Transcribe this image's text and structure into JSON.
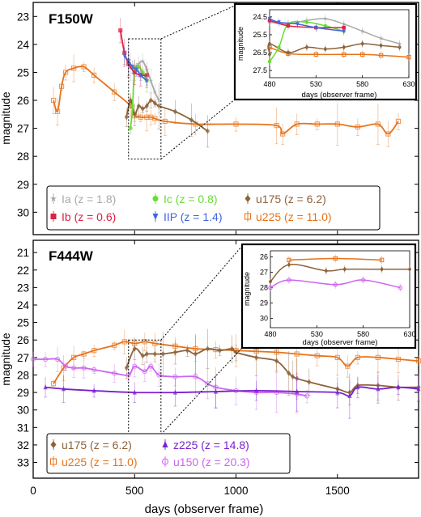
{
  "figure": {
    "xlabel": "days (observer frame)",
    "xticks": [
      "0",
      "500",
      "1000",
      "1500"
    ]
  },
  "chart_data": [
    {
      "type": "line",
      "title": "F150W",
      "ylabel": "magnitude",
      "xlim": [
        0,
        1900
      ],
      "ylim": [
        30.8,
        22.5
      ],
      "y_inverted": true,
      "yticks": [
        23,
        24,
        25,
        26,
        27,
        28,
        29,
        30
      ],
      "legend": {
        "placement": "bottom",
        "entries": [
          {
            "label": "Ia (z = 1.8)",
            "color": "#a9a9a9",
            "marker": "star"
          },
          {
            "label": "Ic (z = 0.8)",
            "color": "#66dd33",
            "marker": "circle"
          },
          {
            "label": "u175 (z = 6.2)",
            "color": "#8c6239",
            "marker": "diamond"
          },
          {
            "label": "Ib (z = 0.6)",
            "color": "#dd2244",
            "marker": "square"
          },
          {
            "label": "IIP (z = 1.4)",
            "color": "#4466dd",
            "marker": "triangle-down"
          },
          {
            "label": "u225 (z = 11.0)",
            "color": "#e8731a",
            "marker": "open-square"
          }
        ]
      },
      "zoom_box": {
        "x": [
          470,
          630
        ],
        "y": [
          23.8,
          28.1
        ]
      },
      "series": [
        {
          "name": "u225 (z = 11.0)",
          "color": "#e8731a",
          "x": [
            100,
            120,
            140,
            160,
            200,
            250,
            300,
            400,
            480,
            500,
            530,
            560,
            580,
            600,
            650,
            800,
            1000,
            1200,
            1230,
            1300,
            1400,
            1500,
            1600,
            1700,
            1750,
            1800
          ],
          "y": [
            26.0,
            26.4,
            25.5,
            25.0,
            24.85,
            24.8,
            25.1,
            25.7,
            26.2,
            26.55,
            26.6,
            26.6,
            26.6,
            26.65,
            26.75,
            26.85,
            26.85,
            26.9,
            27.2,
            26.85,
            26.85,
            26.85,
            26.95,
            26.85,
            27.2,
            26.75
          ]
        },
        {
          "name": "u175 (z = 6.2)",
          "color": "#8c6239",
          "x": [
            460,
            480,
            500,
            520,
            540,
            560,
            580,
            600,
            620,
            700,
            780,
            860
          ],
          "y": [
            26.6,
            26.0,
            26.5,
            26.2,
            26.3,
            26.2,
            26.0,
            26.1,
            26.2,
            26.4,
            26.7,
            27.1
          ]
        },
        {
          "name": "Ia (z = 1.8)",
          "color": "#a9a9a9",
          "x": [
            480,
            500,
            520,
            540,
            560,
            580,
            600,
            620
          ],
          "y": [
            24.8,
            24.9,
            24.7,
            24.6,
            24.9,
            25.3,
            25.7,
            26.0
          ]
        },
        {
          "name": "Ic (z = 0.8)",
          "color": "#66dd33",
          "x": [
            480,
            490,
            500,
            520,
            540,
            560
          ],
          "y": [
            27.0,
            26.2,
            24.9,
            24.8,
            25.0,
            25.3
          ]
        },
        {
          "name": "Ib (z = 0.6)",
          "color": "#dd2244",
          "x": [
            430,
            450,
            470,
            500,
            530,
            560
          ],
          "y": [
            23.5,
            24.3,
            24.7,
            25.0,
            25.1,
            25.1
          ]
        },
        {
          "name": "IIP (z = 1.4)",
          "color": "#4466dd",
          "x": [
            450,
            470,
            490,
            510,
            530,
            560
          ],
          "y": [
            24.4,
            24.6,
            24.8,
            24.9,
            25.1,
            25.3
          ]
        }
      ],
      "inset": {
        "xlabel": "days (observer frame)",
        "ylabel": "magnitude",
        "xticks": [
          "480",
          "530",
          "580",
          "630"
        ],
        "yticks": [
          "24.5",
          "25.5",
          "26.5",
          "27.5"
        ],
        "xlim": [
          480,
          630
        ],
        "ylim": [
          27.9,
          24.1
        ]
      }
    },
    {
      "type": "line",
      "title": "F444W",
      "ylabel": "magnitude",
      "xlim": [
        0,
        1900
      ],
      "ylim": [
        33.9,
        20.3
      ],
      "y_inverted": true,
      "yticks": [
        21,
        22,
        23,
        24,
        25,
        26,
        27,
        28,
        29,
        30,
        31,
        32,
        33
      ],
      "legend": {
        "placement": "bottom",
        "entries": [
          {
            "label": "u175 (z = 6.2)",
            "color": "#8c6239",
            "marker": "diamond"
          },
          {
            "label": "z225 (z = 14.8)",
            "color": "#7a1fd1",
            "marker": "triangle-up"
          },
          {
            "label": "u225 (z = 11.0)",
            "color": "#e8731a",
            "marker": "open-square"
          },
          {
            "label": "u150 (z = 20.3)",
            "color": "#cc66ee",
            "marker": "open-circle"
          }
        ]
      },
      "zoom_box": {
        "x": [
          470,
          630
        ],
        "y": [
          26.0,
          31.4
        ]
      },
      "series": [
        {
          "name": "u225 (z = 11.0)",
          "color": "#e8731a",
          "x": [
            100,
            150,
            200,
            250,
            300,
            400,
            450,
            500,
            550,
            600,
            700,
            800,
            900,
            1000,
            1100,
            1200,
            1300,
            1400,
            1500,
            1550,
            1600,
            1700,
            1800,
            1900
          ],
          "y": [
            28.5,
            27.6,
            27.0,
            26.8,
            26.6,
            26.3,
            26.1,
            26.2,
            26.1,
            26.2,
            26.35,
            26.5,
            26.55,
            26.6,
            26.65,
            26.7,
            26.8,
            26.9,
            27.0,
            27.5,
            27.0,
            27.0,
            27.1,
            27.2
          ]
        },
        {
          "name": "u175 (z = 6.2)",
          "color": "#8c6239",
          "x": [
            460,
            500,
            540,
            560,
            600,
            640,
            700,
            760,
            800,
            860,
            920,
            980,
            1000,
            1100,
            1200,
            1260,
            1280,
            1300,
            1360,
            1500,
            1560,
            1600,
            1700,
            1800,
            1900
          ],
          "y": [
            27.6,
            26.5,
            26.9,
            26.8,
            26.8,
            26.8,
            26.7,
            26.6,
            26.8,
            26.5,
            26.6,
            26.5,
            26.7,
            27.0,
            27.2,
            27.9,
            28.1,
            28.2,
            28.4,
            28.8,
            29.0,
            28.6,
            28.6,
            28.7,
            28.7
          ]
        },
        {
          "name": "u150 (z = 20.3)",
          "color": "#cc66ee",
          "x": [
            0,
            60,
            120,
            160,
            200,
            250,
            300,
            400,
            470,
            500,
            550,
            580,
            620,
            700,
            800,
            860,
            900,
            1000,
            1100,
            1200,
            1300,
            1350
          ],
          "y": [
            27.1,
            27.1,
            27.1,
            27.5,
            27.6,
            27.6,
            27.7,
            27.9,
            28.0,
            27.5,
            27.8,
            27.5,
            28.0,
            28.1,
            28.1,
            28.5,
            28.7,
            28.9,
            29.0,
            29.0,
            29.1,
            29.2
          ]
        },
        {
          "name": "z225 (z = 14.8)",
          "color": "#7a1fd1",
          "x": [
            60,
            150,
            300,
            500,
            700,
            900,
            1100,
            1300,
            1500,
            1560,
            1600,
            1700,
            1800,
            1900
          ],
          "y": [
            28.7,
            28.8,
            28.9,
            29.0,
            29.0,
            28.95,
            28.9,
            28.95,
            29.0,
            29.2,
            28.7,
            28.8,
            28.7,
            28.8
          ]
        }
      ],
      "inset": {
        "xlabel": "days (observer frame)",
        "ylabel": "magnitude",
        "xticks": [
          "480",
          "530",
          "580",
          "630"
        ],
        "yticks": [
          "26",
          "27",
          "28",
          "29",
          "30"
        ],
        "xlim": [
          480,
          630
        ],
        "ylim": [
          30.6,
          25.6
        ]
      }
    }
  ]
}
